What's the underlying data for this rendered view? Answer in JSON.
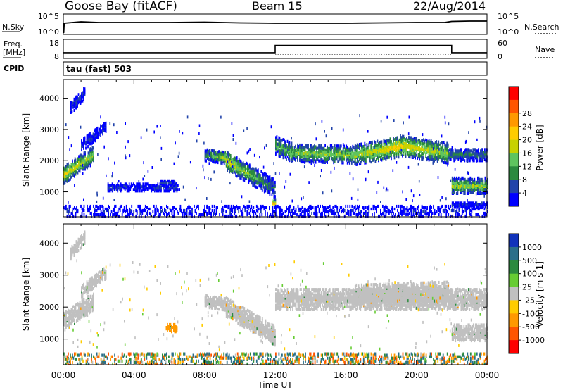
{
  "header": {
    "station": "Goose Bay (fitACF)",
    "beam": "Beam 15",
    "date": "22/Aug/2014"
  },
  "top_panels": {
    "noise": {
      "left_label": "N.Sky",
      "right_label": "N.Search",
      "left_ticks": [
        "10^5",
        "10^0"
      ],
      "right_ticks": [
        "10^5",
        "10^0"
      ]
    },
    "freq": {
      "left_label_1": "Freq.",
      "left_label_2": "[MHz]",
      "right_label": "Nave",
      "left_ticks": [
        "18",
        "8"
      ],
      "right_ticks": [
        "60",
        "0"
      ],
      "cpid_label": "CPID",
      "cpid_value": "tau (fast) 503"
    }
  },
  "power_colorbar": {
    "label": "Power [dB]",
    "ticks": [
      "4",
      "8",
      "12",
      "16",
      "20",
      "24",
      "28"
    ],
    "colors": [
      "#0000ff",
      "#2244aa",
      "#2b8a3e",
      "#5fc45f",
      "#c8d200",
      "#ffcc00",
      "#ff9900",
      "#ff5500",
      "#ff0000"
    ]
  },
  "velocity_colorbar": {
    "label": "Velocity [m s-1]",
    "ticks": [
      "1000",
      "500",
      "100",
      "25",
      "-25",
      "-100",
      "-500",
      "-1000"
    ],
    "colors": [
      "#1133bb",
      "#2b6f8a",
      "#2b8a3e",
      "#66cc33",
      "#c0c0c0",
      "#ffcc00",
      "#ff9900",
      "#ff5500",
      "#ff0000"
    ]
  },
  "chart_data": [
    {
      "type": "line",
      "title": "",
      "series": [
        {
          "name": "N.Sky",
          "x": [
            0.02,
            0.05,
            1,
            2,
            4,
            6,
            8,
            10,
            12,
            14,
            16,
            18,
            20,
            21.6,
            22,
            23,
            24
          ],
          "values": [
            0,
            2.8,
            3.2,
            3.0,
            3.0,
            3.0,
            3.1,
            2.9,
            2.8,
            2.8,
            2.8,
            2.9,
            3.0,
            3.0,
            3.3,
            3.4,
            3.4
          ]
        }
      ],
      "xlim": [
        0,
        24
      ],
      "ylim": [
        0,
        5
      ],
      "ylabel": "N.Sky"
    },
    {
      "type": "line",
      "title": "",
      "series": [
        {
          "name": "Freq.",
          "x": [
            0,
            12,
            12,
            22,
            22,
            24
          ],
          "values": [
            11,
            11,
            14.8,
            14.8,
            11,
            11
          ]
        }
      ],
      "xlim": [
        0,
        24
      ],
      "ylim": [
        8,
        18
      ],
      "ylabel": "[MHz]"
    },
    {
      "type": "heatmap",
      "title": "",
      "ylabel": "Slant Range [km]",
      "xlabel": "",
      "xlim": [
        0,
        24
      ],
      "ylim": [
        200,
        4600
      ],
      "y_ticks": [
        "1000",
        "2000",
        "3000",
        "4000"
      ],
      "x_ticks": [
        "00:00",
        "04:00",
        "08:00",
        "12:00",
        "16:00",
        "20:00",
        "00:00"
      ],
      "value_label": "Power [dB]",
      "regions": [
        {
          "t": [
            0,
            1.7
          ],
          "r_center": [
            1550,
            2200
          ],
          "r_width": 280,
          "level": [
            18,
            14
          ]
        },
        {
          "t": [
            0.4,
            1.2
          ],
          "r_center": [
            3700,
            4200
          ],
          "r_width": 200,
          "level": [
            6,
            6
          ]
        },
        {
          "t": [
            1.0,
            2.4
          ],
          "r_center": [
            2500,
            3100
          ],
          "r_width": 200,
          "level": [
            5,
            5
          ]
        },
        {
          "t": [
            2.5,
            6.5
          ],
          "r_center": [
            1150,
            1150
          ],
          "r_width": 120,
          "level": [
            6,
            6
          ]
        },
        {
          "t": [
            5.5,
            6.3
          ],
          "r_center": [
            1300,
            1300
          ],
          "r_width": 80,
          "level": [
            6,
            6
          ]
        },
        {
          "t": [
            8.0,
            9.2
          ],
          "r_center": [
            2200,
            2100
          ],
          "r_width": 200,
          "level": [
            10,
            16
          ]
        },
        {
          "t": [
            9.2,
            12.0
          ],
          "r_center": [
            2000,
            1100
          ],
          "r_width": 300,
          "level": [
            18,
            8
          ]
        },
        {
          "t": [
            11.8,
            12.0
          ],
          "r_center": [
            650,
            650
          ],
          "r_width": 120,
          "level": [
            22,
            22
          ]
        },
        {
          "t": [
            12.0,
            13.0
          ],
          "r_center": [
            2500,
            2250
          ],
          "r_width": 300,
          "level": [
            12,
            14
          ]
        },
        {
          "t": [
            13.0,
            16.5
          ],
          "r_center": [
            2250,
            2200
          ],
          "r_width": 280,
          "level": [
            14,
            15
          ]
        },
        {
          "t": [
            16.5,
            19.0
          ],
          "r_center": [
            2200,
            2450
          ],
          "r_width": 330,
          "level": [
            15,
            20
          ]
        },
        {
          "t": [
            19.0,
            21.8
          ],
          "r_center": [
            2500,
            2250
          ],
          "r_width": 330,
          "level": [
            19,
            15
          ]
        },
        {
          "t": [
            21.8,
            24
          ],
          "r_center": [
            2200,
            2200
          ],
          "r_width": 200,
          "level": [
            10,
            8
          ]
        },
        {
          "t": [
            22.0,
            24
          ],
          "r_center": [
            1200,
            1200
          ],
          "r_width": 250,
          "level": [
            16,
            14
          ]
        },
        {
          "t": [
            22.0,
            24
          ],
          "r_center": [
            600,
            600
          ],
          "r_width": 90,
          "level": [
            5,
            5
          ]
        },
        {
          "t": [
            0,
            24
          ],
          "r_center": [
            380,
            380
          ],
          "r_width": 200,
          "level": [
            4,
            4
          ]
        }
      ]
    },
    {
      "type": "heatmap",
      "title": "",
      "ylabel": "Slant Range [km]",
      "xlabel": "Time UT",
      "xlim": [
        0,
        24
      ],
      "ylim": [
        200,
        4600
      ],
      "y_ticks": [
        "1000",
        "2000",
        "3000",
        "4000"
      ],
      "x_ticks": [
        "00:00",
        "04:00",
        "08:00",
        "12:00",
        "16:00",
        "20:00",
        "00:00"
      ],
      "value_label": "Velocity [m s-1]",
      "regions": [
        {
          "t": [
            0,
            1.7
          ],
          "r_center": [
            1550,
            2200
          ],
          "r_width": 280,
          "level": [
            0,
            0
          ]
        },
        {
          "t": [
            0.4,
            1.2
          ],
          "r_center": [
            3700,
            4200
          ],
          "r_width": 200,
          "level": [
            0,
            0
          ]
        },
        {
          "t": [
            1.0,
            2.4
          ],
          "r_center": [
            2500,
            3100
          ],
          "r_width": 200,
          "level": [
            0,
            0
          ]
        },
        {
          "t": [
            5.8,
            6.4
          ],
          "r_center": [
            1350,
            1350
          ],
          "r_width": 120,
          "level": [
            -200,
            -200
          ]
        },
        {
          "t": [
            8.0,
            9.2
          ],
          "r_center": [
            2200,
            2100
          ],
          "r_width": 200,
          "level": [
            0,
            0
          ]
        },
        {
          "t": [
            9.2,
            12.0
          ],
          "r_center": [
            2000,
            1100
          ],
          "r_width": 300,
          "level": [
            0,
            0
          ]
        },
        {
          "t": [
            12.0,
            24
          ],
          "r_center": [
            2250,
            2250
          ],
          "r_width": 330,
          "level": [
            0,
            0
          ]
        },
        {
          "t": [
            16.5,
            21.8
          ],
          "r_center": [
            2400,
            2500
          ],
          "r_width": 300,
          "level": [
            0,
            0
          ]
        },
        {
          "t": [
            22.0,
            24
          ],
          "r_center": [
            1200,
            1200
          ],
          "r_width": 250,
          "level": [
            0,
            0
          ]
        },
        {
          "t": [
            0,
            24
          ],
          "r_center": [
            380,
            380
          ],
          "r_width": 200,
          "level": [
            60,
            60
          ]
        }
      ]
    }
  ],
  "axes": {
    "ylabel": "Slant Range [km]",
    "xlabel": "Time UT",
    "x_ticks": [
      "00:00",
      "04:00",
      "08:00",
      "12:00",
      "16:00",
      "20:00",
      "00:00"
    ],
    "y_ticks": [
      "1000",
      "2000",
      "3000",
      "4000"
    ]
  }
}
